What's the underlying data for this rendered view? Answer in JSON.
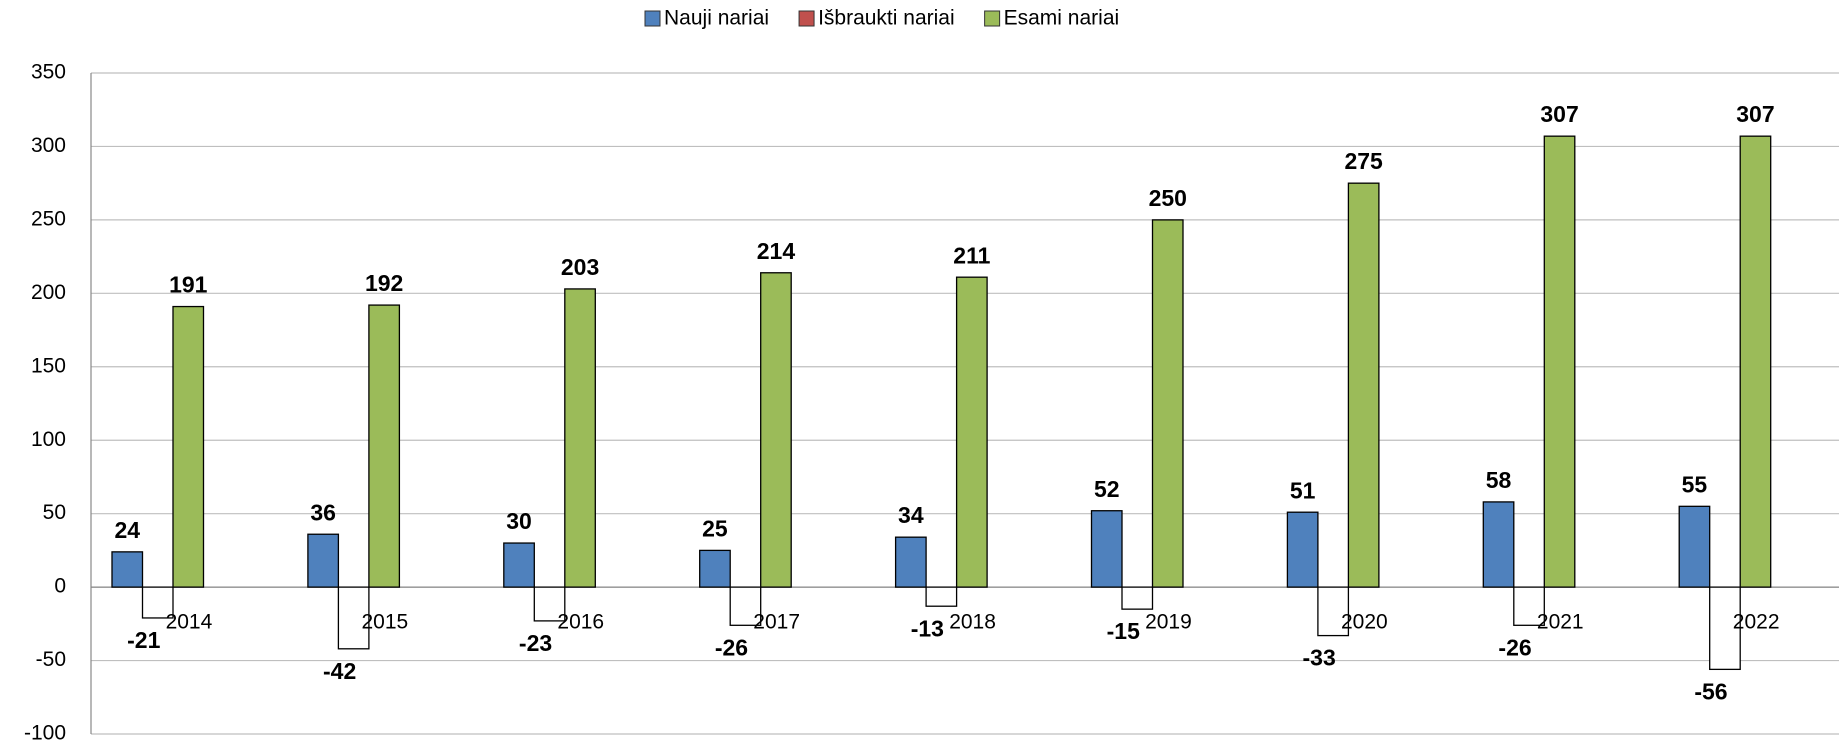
{
  "chart_data": {
    "type": "bar",
    "categories": [
      "2014",
      "2015",
      "2016",
      "2017",
      "2018",
      "2019",
      "2020",
      "2021",
      "2022"
    ],
    "series": [
      {
        "name": "Nauji nariai",
        "color": "#4f81bd",
        "values": [
          24,
          36,
          30,
          25,
          34,
          52,
          51,
          58,
          55
        ]
      },
      {
        "name": "Išbraukti nariai",
        "color": "#c0504d",
        "invert_if_negative": true,
        "values": [
          -21,
          -42,
          -23,
          -26,
          -13,
          -15,
          -33,
          -26,
          -56
        ]
      },
      {
        "name": "Esami nariai",
        "color": "#9bbb59",
        "values": [
          191,
          192,
          203,
          214,
          211,
          250,
          275,
          307,
          307
        ]
      }
    ],
    "ylim": [
      -100,
      350
    ],
    "yticks": [
      -100,
      -50,
      0,
      50,
      100,
      150,
      200,
      250,
      300,
      350
    ],
    "grid": true,
    "legend": "top"
  }
}
